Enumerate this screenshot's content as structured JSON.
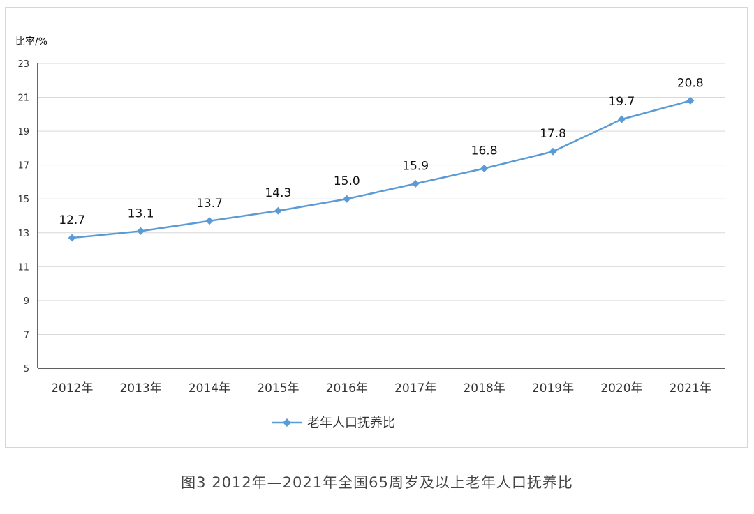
{
  "chart_data": {
    "type": "line",
    "title": "",
    "ylabel": "比率/%",
    "xlabel": "",
    "categories": [
      "2012年",
      "2013年",
      "2014年",
      "2015年",
      "2016年",
      "2017年",
      "2018年",
      "2019年",
      "2020年",
      "2021年"
    ],
    "series": [
      {
        "name": "老年人口抚养比",
        "values": [
          12.7,
          13.1,
          13.7,
          14.3,
          15.0,
          15.9,
          16.8,
          17.8,
          19.7,
          20.8
        ],
        "labels": [
          "12.7",
          "13.1",
          "13.7",
          "14.3",
          "15.0",
          "15.9",
          "16.8",
          "17.8",
          "19.7",
          "20.8"
        ]
      }
    ],
    "ylim": [
      5,
      23
    ],
    "yticks": [
      5,
      7,
      9,
      11,
      13,
      15,
      17,
      19,
      21,
      23
    ],
    "grid": true,
    "legend_position": "bottom-left",
    "line_color": "#5b9bd5",
    "marker": "diamond"
  },
  "caption": "图3  2012年—2021年全国65周岁及以上老年人口抚养比"
}
